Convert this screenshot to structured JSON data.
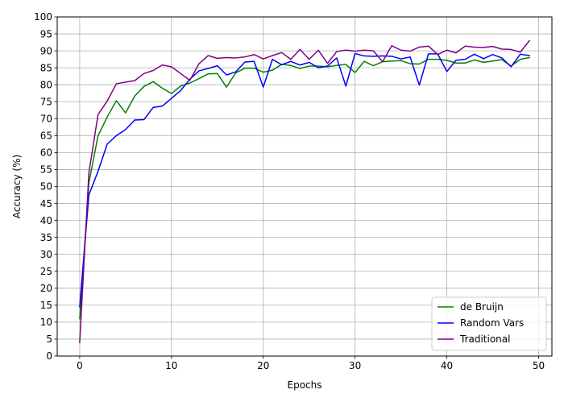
{
  "chart_data": {
    "type": "line",
    "title": "",
    "xlabel": "Epochs",
    "ylabel": "Accuracy (%)",
    "xlim": [
      -2.45,
      51.45
    ],
    "ylim": [
      0,
      100
    ],
    "x_ticks": [
      0,
      10,
      20,
      30,
      40,
      50
    ],
    "y_ticks": [
      0,
      5,
      10,
      15,
      20,
      25,
      30,
      35,
      40,
      45,
      50,
      55,
      60,
      65,
      70,
      75,
      80,
      85,
      90,
      95,
      100
    ],
    "grid": true,
    "legend_position": "lower-right",
    "x": [
      0,
      1,
      2,
      3,
      4,
      5,
      6,
      7,
      8,
      9,
      10,
      11,
      12,
      13,
      14,
      15,
      16,
      17,
      18,
      19,
      20,
      21,
      22,
      23,
      24,
      25,
      26,
      27,
      28,
      29,
      30,
      31,
      32,
      33,
      34,
      35,
      36,
      37,
      38,
      39,
      40,
      41,
      42,
      43,
      44,
      45,
      46,
      47,
      48,
      49
    ],
    "series": [
      {
        "name": "de Bruijn",
        "color": "#008000",
        "values": [
          11.0,
          51.0,
          65.0,
          70.5,
          75.3,
          71.7,
          76.7,
          79.5,
          80.9,
          79.0,
          77.4,
          79.6,
          80.5,
          81.8,
          83.2,
          83.3,
          79.3,
          83.5,
          84.9,
          84.9,
          83.7,
          84.3,
          86.0,
          85.7,
          84.8,
          85.5,
          85.5,
          85.3,
          85.7,
          86.0,
          83.6,
          86.9,
          85.6,
          86.8,
          87.0,
          87.1,
          86.2,
          86.1,
          87.5,
          87.5,
          87.2,
          86.4,
          86.4,
          87.3,
          86.6,
          87.0,
          87.4,
          85.5,
          87.5,
          88.0
        ]
      },
      {
        "name": "Random Vars",
        "color": "#0000ff",
        "values": [
          14.5,
          47.5,
          54.5,
          62.5,
          65.0,
          66.8,
          69.6,
          69.7,
          73.3,
          73.7,
          76.0,
          78.3,
          81.6,
          84.1,
          84.8,
          85.6,
          82.9,
          83.8,
          86.7,
          86.9,
          79.3,
          87.5,
          85.9,
          86.9,
          85.8,
          86.6,
          85.0,
          85.5,
          87.9,
          79.6,
          89.2,
          88.5,
          88.4,
          88.5,
          88.4,
          87.6,
          88.2,
          79.9,
          89.1,
          89.1,
          83.9,
          87.2,
          87.5,
          89.0,
          87.7,
          88.9,
          87.9,
          85.3,
          89.0,
          88.6
        ]
      },
      {
        "name": "Traditional",
        "color": "#800080",
        "values": [
          4.0,
          54.0,
          71.2,
          75.2,
          80.3,
          80.8,
          81.2,
          83.3,
          84.2,
          85.8,
          85.3,
          83.3,
          81.3,
          86.2,
          88.6,
          87.8,
          88.0,
          87.9,
          88.2,
          88.9,
          87.6,
          88.6,
          89.5,
          87.5,
          90.4,
          87.5,
          90.2,
          86.3,
          89.8,
          90.2,
          89.9,
          90.2,
          90.0,
          86.8,
          91.5,
          90.2,
          89.9,
          91.1,
          91.4,
          88.9,
          90.2,
          89.4,
          91.4,
          91.1,
          91.0,
          91.3,
          90.5,
          90.4,
          89.6,
          93.0
        ]
      }
    ]
  }
}
